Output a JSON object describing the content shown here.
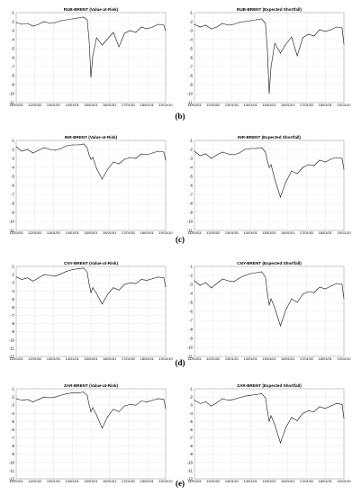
{
  "figure": {
    "row_labels": [
      "(b)",
      "(c)",
      "(d)",
      "(e)"
    ]
  },
  "chart_data": [
    {
      "type": "line",
      "title": "RUB-BRENT (Value-at-Risk)",
      "xlabel": "",
      "ylabel": "",
      "ylim": [
        -11,
        -1
      ],
      "grid": true,
      "x_ticks": [
        "11/01/03",
        "12/01/02",
        "13/01/01",
        "14/01/01",
        "15/01/01",
        "16/01/01",
        "17/01/02",
        "18/01/01",
        "19/12/10"
      ],
      "y_ticks": [
        "-1",
        "-2",
        "-3",
        "-4",
        "-5",
        "-6",
        "-7",
        "-8",
        "-9",
        "-10",
        "-11"
      ],
      "series": [
        {
          "x": [
            0,
            0.3,
            0.6,
            0.9,
            1.2,
            1.5,
            1.8,
            2.1,
            2.4,
            2.7,
            3.0,
            3.3,
            3.6,
            3.8,
            3.9,
            4.0,
            4.1,
            4.3,
            4.6,
            4.9,
            5.2,
            5.5,
            5.8,
            6.1,
            6.4,
            6.7,
            7.0,
            7.3,
            7.6,
            7.9,
            8.0
          ],
          "values": [
            -2.1,
            -2.3,
            -2.2,
            -2.5,
            -2.3,
            -2.0,
            -2.2,
            -2.1,
            -1.9,
            -1.8,
            -1.7,
            -1.6,
            -1.5,
            -1.8,
            -4.0,
            -8.2,
            -5.8,
            -3.8,
            -4.6,
            -3.9,
            -3.2,
            -4.8,
            -3.3,
            -3.0,
            -3.2,
            -2.6,
            -2.8,
            -2.6,
            -2.3,
            -2.4,
            -3.0
          ]
        }
      ]
    },
    {
      "type": "line",
      "title": "RUB-BRENT (Expected Shortfall)",
      "xlabel": "",
      "ylabel": "",
      "ylim": [
        -11,
        -1
      ],
      "grid": true,
      "x_ticks": [
        "11/01/03",
        "12/01/02",
        "13/01/01",
        "14/01/01",
        "15/01/01",
        "16/01/01",
        "17/01/02",
        "18/01/01",
        "19/12/10"
      ],
      "y_ticks": [
        "-1",
        "-2",
        "-3",
        "-4",
        "-5",
        "-6",
        "-7",
        "-8",
        "-9",
        "-10",
        "-11"
      ],
      "series": [
        {
          "x": [
            0,
            0.3,
            0.6,
            0.9,
            1.2,
            1.5,
            1.8,
            2.1,
            2.4,
            2.7,
            3.0,
            3.3,
            3.6,
            3.8,
            3.9,
            4.0,
            4.1,
            4.3,
            4.6,
            4.9,
            5.2,
            5.5,
            5.8,
            6.1,
            6.4,
            6.7,
            7.0,
            7.3,
            7.6,
            7.9,
            8.0
          ],
          "values": [
            -2.3,
            -2.6,
            -2.4,
            -2.8,
            -2.6,
            -2.2,
            -2.4,
            -2.3,
            -2.1,
            -2.0,
            -1.9,
            -1.8,
            -1.7,
            -2.2,
            -5.0,
            -10.0,
            -7.0,
            -4.4,
            -5.5,
            -4.5,
            -3.7,
            -5.8,
            -3.8,
            -3.4,
            -3.6,
            -2.9,
            -3.1,
            -2.9,
            -2.6,
            -2.7,
            -4.5
          ]
        }
      ]
    },
    {
      "type": "line",
      "title": "INR-BRENT (Value-at-Risk)",
      "xlabel": "",
      "ylabel": "",
      "ylim": [
        -11,
        -1
      ],
      "grid": true,
      "x_ticks": [
        "11/01/03",
        "12/01/02",
        "13/01/01",
        "14/01/01",
        "15/01/01",
        "16/01/01",
        "17/01/02",
        "18/01/01",
        "19/12/10"
      ],
      "y_ticks": [
        "-1",
        "-2",
        "-3",
        "-4",
        "-5",
        "-6",
        "-7",
        "-8",
        "-9",
        "-10",
        "-11"
      ],
      "series": [
        {
          "x": [
            0,
            0.3,
            0.6,
            0.9,
            1.2,
            1.5,
            1.8,
            2.1,
            2.4,
            2.7,
            3.0,
            3.3,
            3.6,
            3.8,
            3.9,
            4.0,
            4.1,
            4.3,
            4.6,
            4.9,
            5.2,
            5.5,
            5.8,
            6.1,
            6.4,
            6.7,
            7.0,
            7.3,
            7.6,
            7.9,
            8.0
          ],
          "values": [
            -1.7,
            -2.2,
            -2.0,
            -2.4,
            -2.1,
            -1.8,
            -2.0,
            -2.1,
            -1.9,
            -1.6,
            -1.5,
            -1.5,
            -1.4,
            -1.8,
            -2.6,
            -3.1,
            -2.9,
            -4.1,
            -5.3,
            -4.2,
            -3.4,
            -3.6,
            -3.1,
            -2.9,
            -3.0,
            -2.5,
            -2.6,
            -2.4,
            -2.2,
            -2.3,
            -3.2
          ]
        }
      ]
    },
    {
      "type": "line",
      "title": "INR-BRENT (Expected Shortfall)",
      "xlabel": "",
      "ylabel": "",
      "ylim": [
        -11,
        -1
      ],
      "grid": true,
      "x_ticks": [
        "11/01/03",
        "12/01/02",
        "13/01/01",
        "14/01/01",
        "15/01/01",
        "16/01/01",
        "17/01/02",
        "18/01/01",
        "19/12/10"
      ],
      "y_ticks": [
        "-1",
        "-2",
        "-3",
        "-4",
        "-5",
        "-6",
        "-7",
        "-8",
        "-9",
        "-10",
        "-11"
      ],
      "series": [
        {
          "x": [
            0,
            0.3,
            0.6,
            0.9,
            1.2,
            1.5,
            1.8,
            2.1,
            2.4,
            2.7,
            3.0,
            3.3,
            3.6,
            3.8,
            3.9,
            4.0,
            4.1,
            4.3,
            4.6,
            4.9,
            5.2,
            5.5,
            5.8,
            6.1,
            6.4,
            6.7,
            7.0,
            7.3,
            7.6,
            7.9,
            8.0
          ],
          "values": [
            -2.2,
            -2.7,
            -2.5,
            -3.0,
            -2.6,
            -2.3,
            -2.5,
            -2.6,
            -2.4,
            -2.0,
            -1.9,
            -1.9,
            -1.8,
            -2.3,
            -3.3,
            -4.0,
            -3.7,
            -5.3,
            -7.3,
            -5.6,
            -4.4,
            -4.7,
            -4.0,
            -3.7,
            -3.8,
            -3.2,
            -3.4,
            -3.1,
            -2.9,
            -3.0,
            -4.2
          ]
        }
      ]
    },
    {
      "type": "line",
      "title": "CNY-BRENT (Value-at-Risk)",
      "xlabel": "",
      "ylabel": "",
      "ylim": [
        -12,
        -1
      ],
      "grid": true,
      "x_ticks": [
        "11/01/03",
        "12/01/02",
        "13/01/01",
        "14/01/01",
        "15/01/01",
        "16/01/01",
        "17/01/02",
        "18/01/01",
        "19/12/10"
      ],
      "y_ticks": [
        "-1",
        "-2",
        "-3",
        "-4",
        "-5",
        "-6",
        "-7",
        "-8",
        "-9",
        "-10",
        "-11",
        "-12"
      ],
      "series": [
        {
          "x": [
            0,
            0.3,
            0.6,
            0.9,
            1.2,
            1.5,
            1.8,
            2.1,
            2.4,
            2.7,
            3.0,
            3.3,
            3.6,
            3.8,
            3.9,
            4.0,
            4.1,
            4.3,
            4.6,
            4.9,
            5.2,
            5.5,
            5.8,
            6.1,
            6.4,
            6.7,
            7.0,
            7.3,
            7.6,
            7.9,
            8.0
          ],
          "values": [
            -2.3,
            -2.6,
            -2.4,
            -2.8,
            -2.4,
            -2.0,
            -2.1,
            -2.2,
            -1.9,
            -1.6,
            -1.4,
            -1.3,
            -1.2,
            -1.7,
            -3.1,
            -4.2,
            -3.6,
            -4.3,
            -5.6,
            -4.4,
            -3.6,
            -3.9,
            -3.2,
            -3.0,
            -3.1,
            -2.6,
            -2.7,
            -2.5,
            -2.3,
            -2.4,
            -3.5
          ]
        }
      ]
    },
    {
      "type": "line",
      "title": "CNY-BRENT (Expected Shortfall)",
      "xlabel": "",
      "ylabel": "",
      "ylim": [
        -11,
        -1
      ],
      "grid": true,
      "x_ticks": [
        "11/01/03",
        "12/01/02",
        "13/01/01",
        "14/01/01",
        "15/01/01",
        "16/01/01",
        "17/01/02",
        "18/01/01",
        "19/12/10"
      ],
      "y_ticks": [
        "-1",
        "-2",
        "-3",
        "-4",
        "-5",
        "-6",
        "-7",
        "-8",
        "-9",
        "-10",
        "-11"
      ],
      "series": [
        {
          "x": [
            0,
            0.3,
            0.6,
            0.9,
            1.2,
            1.5,
            1.8,
            2.1,
            2.4,
            2.7,
            3.0,
            3.3,
            3.6,
            3.8,
            3.9,
            4.0,
            4.1,
            4.3,
            4.6,
            4.9,
            5.2,
            5.5,
            5.8,
            6.1,
            6.4,
            6.7,
            7.0,
            7.3,
            7.6,
            7.9,
            8.0
          ],
          "values": [
            -2.6,
            -3.1,
            -2.8,
            -3.4,
            -2.9,
            -2.4,
            -2.6,
            -2.7,
            -2.3,
            -2.0,
            -1.8,
            -1.7,
            -1.6,
            -2.2,
            -3.9,
            -5.3,
            -4.6,
            -5.6,
            -7.6,
            -5.8,
            -4.6,
            -5.0,
            -4.1,
            -3.8,
            -3.9,
            -3.3,
            -3.5,
            -3.2,
            -2.9,
            -3.0,
            -4.6
          ]
        }
      ]
    },
    {
      "type": "line",
      "title": "ZAR-BRENT (Value-at-Risk)",
      "xlabel": "",
      "ylabel": "",
      "ylim": [
        -12,
        -1
      ],
      "grid": true,
      "x_ticks": [
        "11/01/03",
        "12/01/02",
        "13/01/01",
        "14/01/01",
        "15/01/01",
        "16/01/01",
        "17/01/02",
        "18/01/01",
        "19/12/10"
      ],
      "y_ticks": [
        "-1",
        "-2",
        "-3",
        "-4",
        "-5",
        "-6",
        "-7",
        "-8",
        "-9",
        "-10",
        "-11",
        "-12"
      ],
      "series": [
        {
          "x": [
            0,
            0.3,
            0.6,
            0.9,
            1.2,
            1.5,
            1.8,
            2.1,
            2.4,
            2.7,
            3.0,
            3.3,
            3.6,
            3.8,
            3.9,
            4.0,
            4.1,
            4.3,
            4.6,
            4.9,
            5.2,
            5.5,
            5.8,
            6.1,
            6.4,
            6.7,
            7.0,
            7.3,
            7.6,
            7.9,
            8.0
          ],
          "values": [
            -2.2,
            -2.4,
            -2.3,
            -2.6,
            -2.3,
            -2.0,
            -2.1,
            -2.0,
            -1.8,
            -1.6,
            -1.5,
            -1.5,
            -1.4,
            -1.8,
            -2.9,
            -3.8,
            -3.3,
            -4.2,
            -5.8,
            -4.4,
            -3.5,
            -3.8,
            -3.1,
            -2.9,
            -3.0,
            -2.5,
            -2.6,
            -2.4,
            -2.2,
            -2.3,
            -3.4
          ]
        }
      ]
    },
    {
      "type": "line",
      "title": "ZAR-BRENT (Expected Shortfall)",
      "xlabel": "",
      "ylabel": "",
      "ylim": [
        -12,
        -1
      ],
      "grid": true,
      "x_ticks": [
        "11/01/03",
        "12/01/02",
        "13/01/01",
        "14/01/01",
        "15/01/01",
        "16/01/01",
        "17/01/02",
        "18/01/01",
        "19/12/10"
      ],
      "y_ticks": [
        "-1",
        "-2",
        "-3",
        "-4",
        "-5",
        "-6",
        "-7",
        "-8",
        "-9",
        "-10",
        "-11",
        "-12"
      ],
      "series": [
        {
          "x": [
            0,
            0.3,
            0.6,
            0.9,
            1.2,
            1.5,
            1.8,
            2.1,
            2.4,
            2.7,
            3.0,
            3.3,
            3.6,
            3.8,
            3.9,
            4.0,
            4.1,
            4.3,
            4.6,
            4.9,
            5.2,
            5.5,
            5.8,
            6.1,
            6.4,
            6.7,
            7.0,
            7.3,
            7.6,
            7.9,
            8.0
          ],
          "values": [
            -2.4,
            -2.8,
            -2.6,
            -3.1,
            -2.7,
            -2.2,
            -2.4,
            -2.3,
            -2.1,
            -1.9,
            -1.8,
            -1.7,
            -1.6,
            -2.1,
            -3.6,
            -5.0,
            -4.3,
            -5.4,
            -7.6,
            -5.7,
            -4.5,
            -4.9,
            -4.0,
            -3.7,
            -3.8,
            -3.2,
            -3.4,
            -3.1,
            -2.8,
            -2.9,
            -4.6
          ]
        }
      ]
    }
  ]
}
